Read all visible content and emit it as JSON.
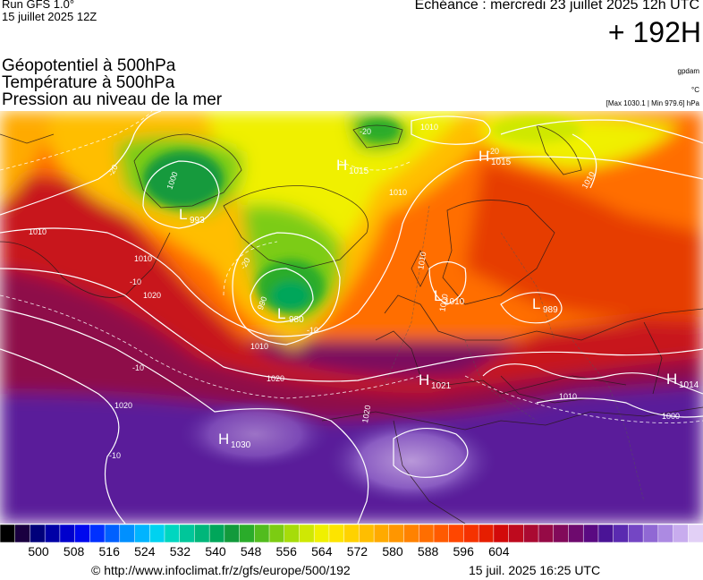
{
  "header": {
    "run_label": "Run GFS 1.0°",
    "run_date": "15 juillet 2025 12Z",
    "echeance": "Echéance : mercredi 23 juillet 2025 12h UTC",
    "horizon": "+ 192H"
  },
  "titles": [
    "Géopotentiel à 500hPa",
    "Température à 500hPa",
    "Pression au niveau de la mer"
  ],
  "units": {
    "geopotential": "gpdam",
    "temperature": "°C",
    "pressure": "[Max 1030.1 | Min 979.6] hPa"
  },
  "map": {
    "pressure_centers": [
      {
        "type": "H",
        "value": "1015"
      },
      {
        "type": "H",
        "value": "1015"
      },
      {
        "type": "L",
        "value": "993"
      },
      {
        "type": "L",
        "value": "980"
      },
      {
        "type": "L",
        "value": "1010"
      },
      {
        "type": "L",
        "value": "989"
      },
      {
        "type": "H",
        "value": "1021"
      },
      {
        "type": "H",
        "value": "1014"
      },
      {
        "type": "H",
        "value": "1030"
      }
    ],
    "isobar_labels": [
      "1010",
      "1010",
      "1010",
      "1010",
      "1010",
      "1010",
      "1020",
      "1020",
      "1020",
      "1020",
      "1000",
      "1000",
      "990",
      "1010",
      "1010",
      "1000"
    ],
    "temperature_labels": [
      "-20",
      "-20",
      "-20",
      "-20",
      "-10",
      "-10",
      "-10",
      "-10"
    ]
  },
  "legend": {
    "ticks": [
      "500",
      "508",
      "516",
      "524",
      "532",
      "540",
      "548",
      "556",
      "564",
      "572",
      "580",
      "588",
      "596",
      "604"
    ],
    "colors": [
      "#000000",
      "#1a0040",
      "#00007a",
      "#0000a6",
      "#0000cc",
      "#0008ee",
      "#0030ff",
      "#0060ff",
      "#0090ff",
      "#00b4ff",
      "#00d2f0",
      "#00d6c0",
      "#00c69a",
      "#00b67a",
      "#00a65a",
      "#129a3c",
      "#2aac2a",
      "#52bc1e",
      "#7ccc12",
      "#a6dc0a",
      "#cfe804",
      "#f0f000",
      "#fde400",
      "#ffd200",
      "#ffbe00",
      "#ffaa00",
      "#ff9600",
      "#ff8200",
      "#ff6e00",
      "#ff5a00",
      "#ff4600",
      "#f53200",
      "#e61e00",
      "#d20a0a",
      "#be0a1e",
      "#aa0a32",
      "#960a46",
      "#820a5a",
      "#6e0a6e",
      "#5a0a82",
      "#4a1496",
      "#5a2ab0",
      "#7446c4",
      "#9068d4",
      "#ac8ae2",
      "#c8acee",
      "#e2d0f6"
    ]
  },
  "footer": {
    "credit": "© http://www.infoclimat.fr/z/gfs/europe/500/192",
    "generated": "15 juil. 2025 16:25 UTC"
  }
}
